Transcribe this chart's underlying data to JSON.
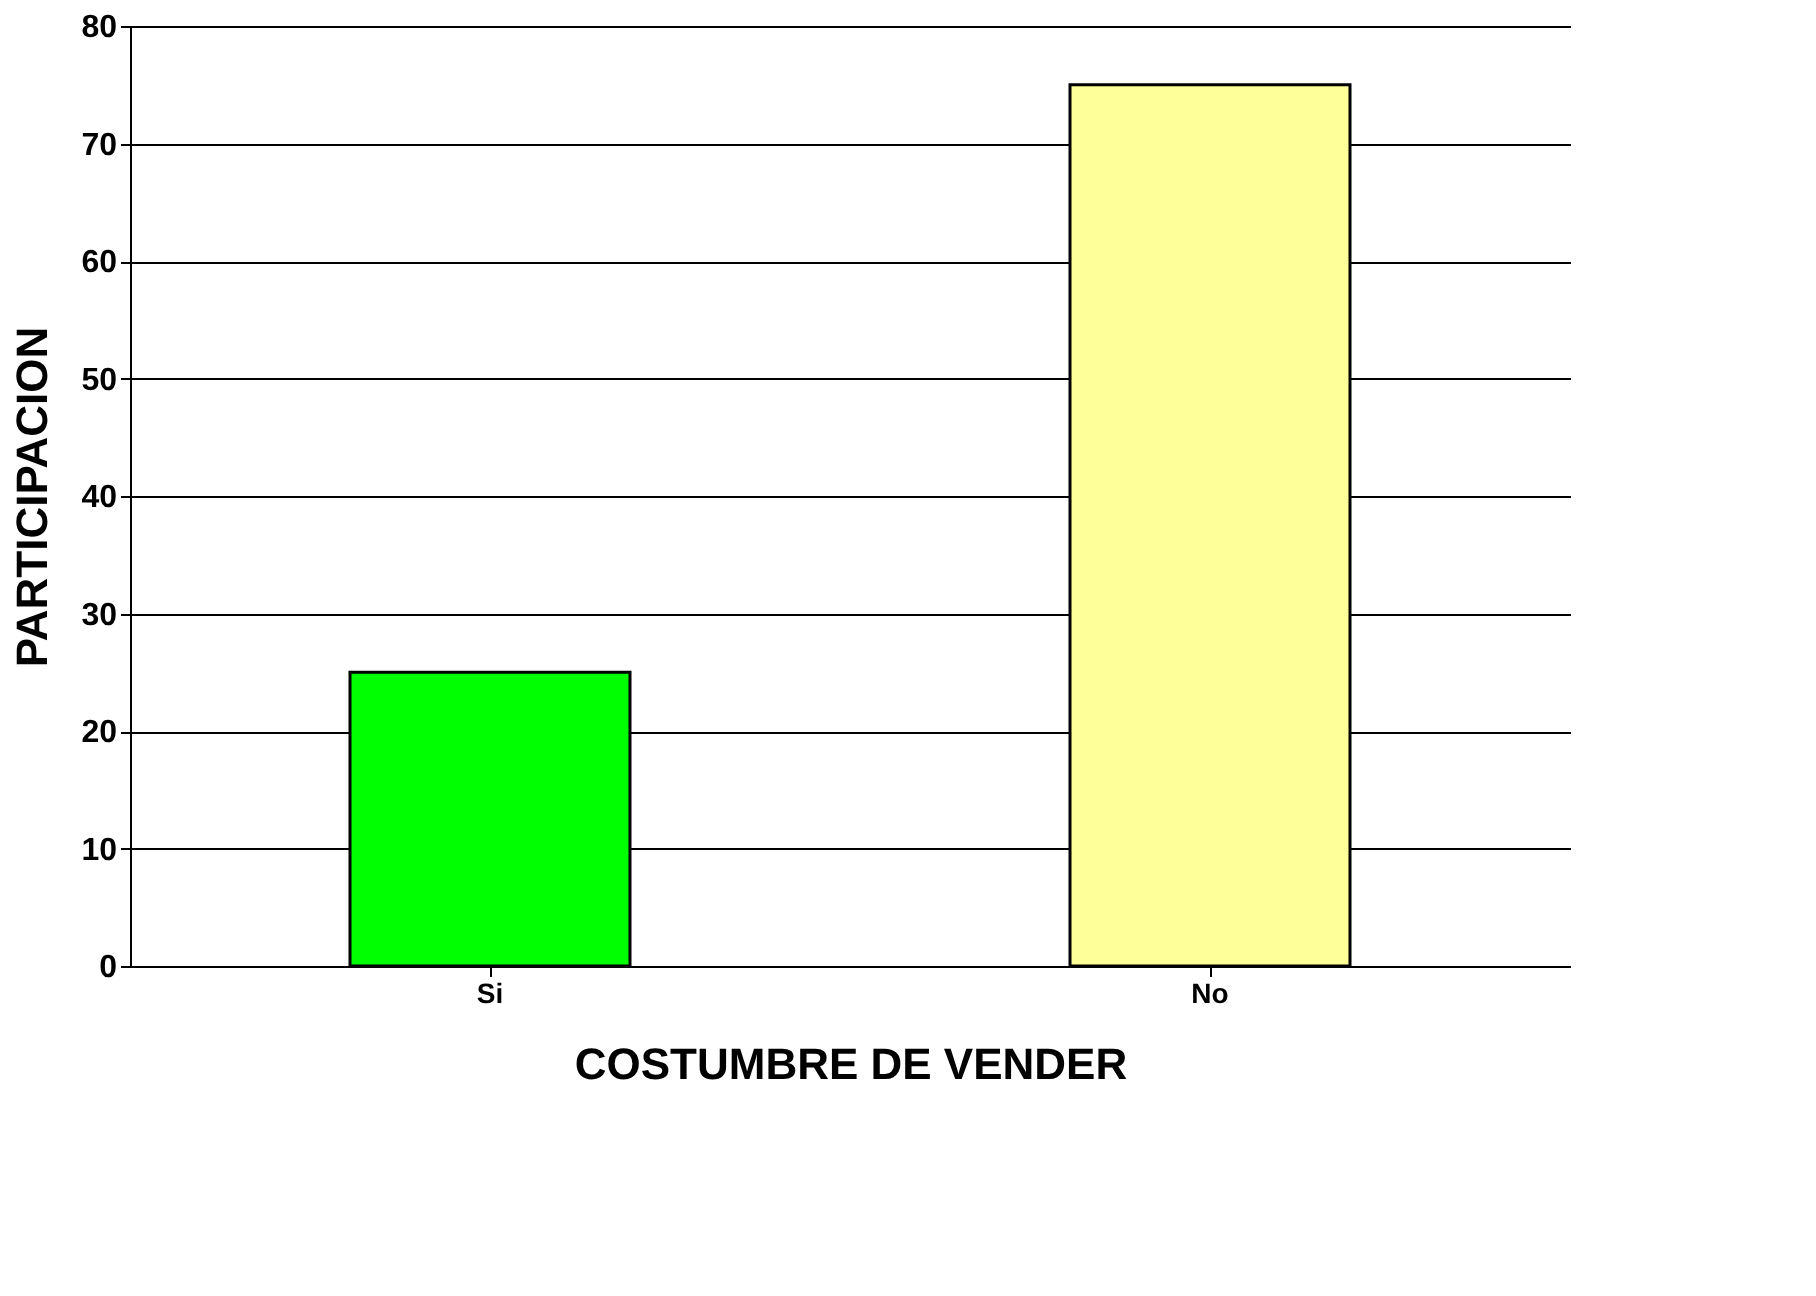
{
  "chart_data": {
    "type": "bar",
    "xlabel": "COSTUMBRE DE VENDER",
    "ylabel": "PARTICIPACION",
    "categories": [
      "Si",
      "No"
    ],
    "values": [
      25,
      75
    ],
    "colors": [
      "#00ff00",
      "#ffff99"
    ],
    "ylim": [
      0,
      80
    ],
    "yticks": [
      0,
      10,
      20,
      30,
      40,
      50,
      60,
      70,
      80
    ],
    "grid": "y"
  }
}
